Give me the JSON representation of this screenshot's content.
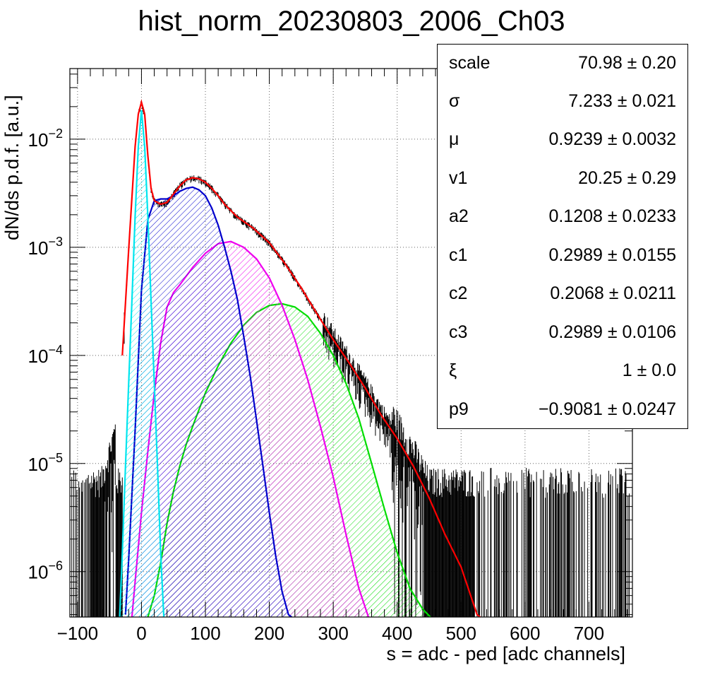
{
  "title": "hist_norm_20230803_2006_Ch03",
  "xlabel": "s = adc - ped [adc channels]",
  "ylabel": "dN/ds p.d.f. [a.u.]",
  "stats": [
    {
      "name": "scale",
      "value": "70.98 ± 0.20"
    },
    {
      "name": "σ",
      "value": "7.233 ± 0.021"
    },
    {
      "name": "μ",
      "value": "0.9239 ± 0.0032"
    },
    {
      "name": "v1",
      "value": "20.25 ± 0.29"
    },
    {
      "name": "a2",
      "value": "0.1208 ± 0.0233"
    },
    {
      "name": "c1",
      "value": "0.2989 ± 0.0155"
    },
    {
      "name": "c2",
      "value": "0.2068 ± 0.0211"
    },
    {
      "name": "c3",
      "value": "0.2989 ± 0.0106"
    },
    {
      "name": "ξ",
      "value": "1 ± 0.0"
    },
    {
      "name": "p9",
      "value": "−0.9081 ± 0.0247"
    }
  ],
  "colors": {
    "total_fit": "#ff0000",
    "pedestal": "#00e5ee",
    "one_pe": "#0000cc",
    "two_pe": "#ee00ee",
    "three_pe": "#00dd00",
    "data": "#000000"
  },
  "chart_data": {
    "type": "line",
    "log_y": true,
    "grid": true,
    "xlim": [
      -112,
      768
    ],
    "ylim": [
      3.8e-07,
      0.045
    ],
    "x_ticks": [
      -100,
      0,
      100,
      200,
      300,
      400,
      500,
      600,
      700
    ],
    "x_tick_labels": [
      "−100",
      "0",
      "100",
      "200",
      "300",
      "400",
      "500",
      "600",
      "700"
    ],
    "y_ticks": [
      1e-06,
      1e-05,
      0.0001,
      0.001,
      0.01
    ],
    "y_tick_labels": [
      {
        "base": "10",
        "exp": "−6"
      },
      {
        "base": "10",
        "exp": "−5"
      },
      {
        "base": "10",
        "exp": "−4"
      },
      {
        "base": "10",
        "exp": "−3"
      },
      {
        "base": "10",
        "exp": "−2"
      }
    ],
    "series": [
      {
        "key": "total",
        "x": [
          -30,
          -20,
          -10,
          -5,
          0,
          5,
          10,
          15,
          20,
          30,
          40,
          50,
          60,
          70,
          80,
          90,
          100,
          110,
          120,
          130,
          150,
          175,
          200,
          225,
          250,
          275,
          300,
          325,
          350,
          375,
          400,
          425,
          450,
          475,
          500,
          525,
          530
        ],
        "y": [
          0.0001,
          0.00095,
          0.0085,
          0.017,
          0.022,
          0.017,
          0.007,
          0.0035,
          0.0027,
          0.0025,
          0.0026,
          0.0031,
          0.0037,
          0.0042,
          0.0044,
          0.0043,
          0.004,
          0.0035,
          0.003,
          0.0025,
          0.0019,
          0.0015,
          0.0011,
          0.0007,
          0.00042,
          0.00024,
          0.00014,
          8.5e-05,
          5e-05,
          2.8e-05,
          1.7e-05,
          9.5e-06,
          4.8e-06,
          2.2e-06,
          1.1e-06,
          4e-07,
          3.3e-07
        ]
      },
      {
        "key": "pedestal",
        "x": [
          -34,
          -30,
          -25,
          -20,
          -15,
          -10,
          -5,
          0,
          5,
          10,
          15,
          20,
          25,
          30,
          35
        ],
        "y": [
          3.8e-07,
          1.5e-06,
          9.5e-06,
          5.5e-05,
          0.00032,
          0.0019,
          0.0085,
          0.0185,
          0.0085,
          0.0019,
          0.00032,
          5.5e-05,
          9.5e-06,
          1.5e-06,
          3.8e-07
        ]
      },
      {
        "key": "one_pe",
        "x": [
          -25,
          -20,
          -10,
          0,
          10,
          20,
          30,
          40,
          50,
          60,
          70,
          80,
          90,
          100,
          110,
          120,
          130,
          140,
          150,
          160,
          170,
          180,
          190,
          200,
          210,
          220,
          230,
          235
        ],
        "y": [
          4e-07,
          1.3e-06,
          2e-05,
          0.0004,
          0.0018,
          0.0027,
          0.0028,
          0.0028,
          0.003,
          0.0033,
          0.0035,
          0.0036,
          0.0034,
          0.003,
          0.0023,
          0.0016,
          0.001,
          0.0006,
          0.00033,
          0.00015,
          6.5e-05,
          2.5e-05,
          9.5e-06,
          3.5e-06,
          1.4e-06,
          6.5e-07,
          4e-07,
          3.5e-07
        ]
      },
      {
        "key": "two_pe",
        "x": [
          -15,
          -10,
          0,
          10,
          20,
          30,
          40,
          50,
          60,
          80,
          100,
          120,
          140,
          160,
          180,
          200,
          220,
          240,
          260,
          280,
          300,
          320,
          340,
          355
        ],
        "y": [
          3.8e-07,
          8e-07,
          3.5e-06,
          1.3e-05,
          4.5e-05,
          0.00013,
          0.00028,
          0.00038,
          0.00045,
          0.00065,
          0.00088,
          0.00108,
          0.00113,
          0.001,
          0.00078,
          0.00052,
          0.00029,
          0.00014,
          6e-05,
          2.2e-05,
          7.5e-06,
          2.2e-06,
          7e-07,
          3.8e-07
        ]
      },
      {
        "key": "three_pe",
        "x": [
          10,
          20,
          30,
          40,
          50,
          60,
          70,
          80,
          100,
          120,
          140,
          160,
          180,
          200,
          220,
          240,
          260,
          280,
          300,
          320,
          340,
          360,
          380,
          400,
          420,
          440,
          452
        ],
        "y": [
          3.8e-07,
          6e-07,
          1.2e-06,
          2.8e-06,
          5.5e-06,
          9.5e-06,
          1.5e-05,
          2.2e-05,
          4.5e-05,
          8e-05,
          0.00013,
          0.00019,
          0.00025,
          0.00029,
          0.0003,
          0.00028,
          0.00023,
          0.00016,
          0.0001,
          5.5e-05,
          2.6e-05,
          1e-05,
          3.8e-06,
          1.5e-06,
          7e-07,
          4.5e-07,
          3.8e-07
        ]
      }
    ]
  }
}
